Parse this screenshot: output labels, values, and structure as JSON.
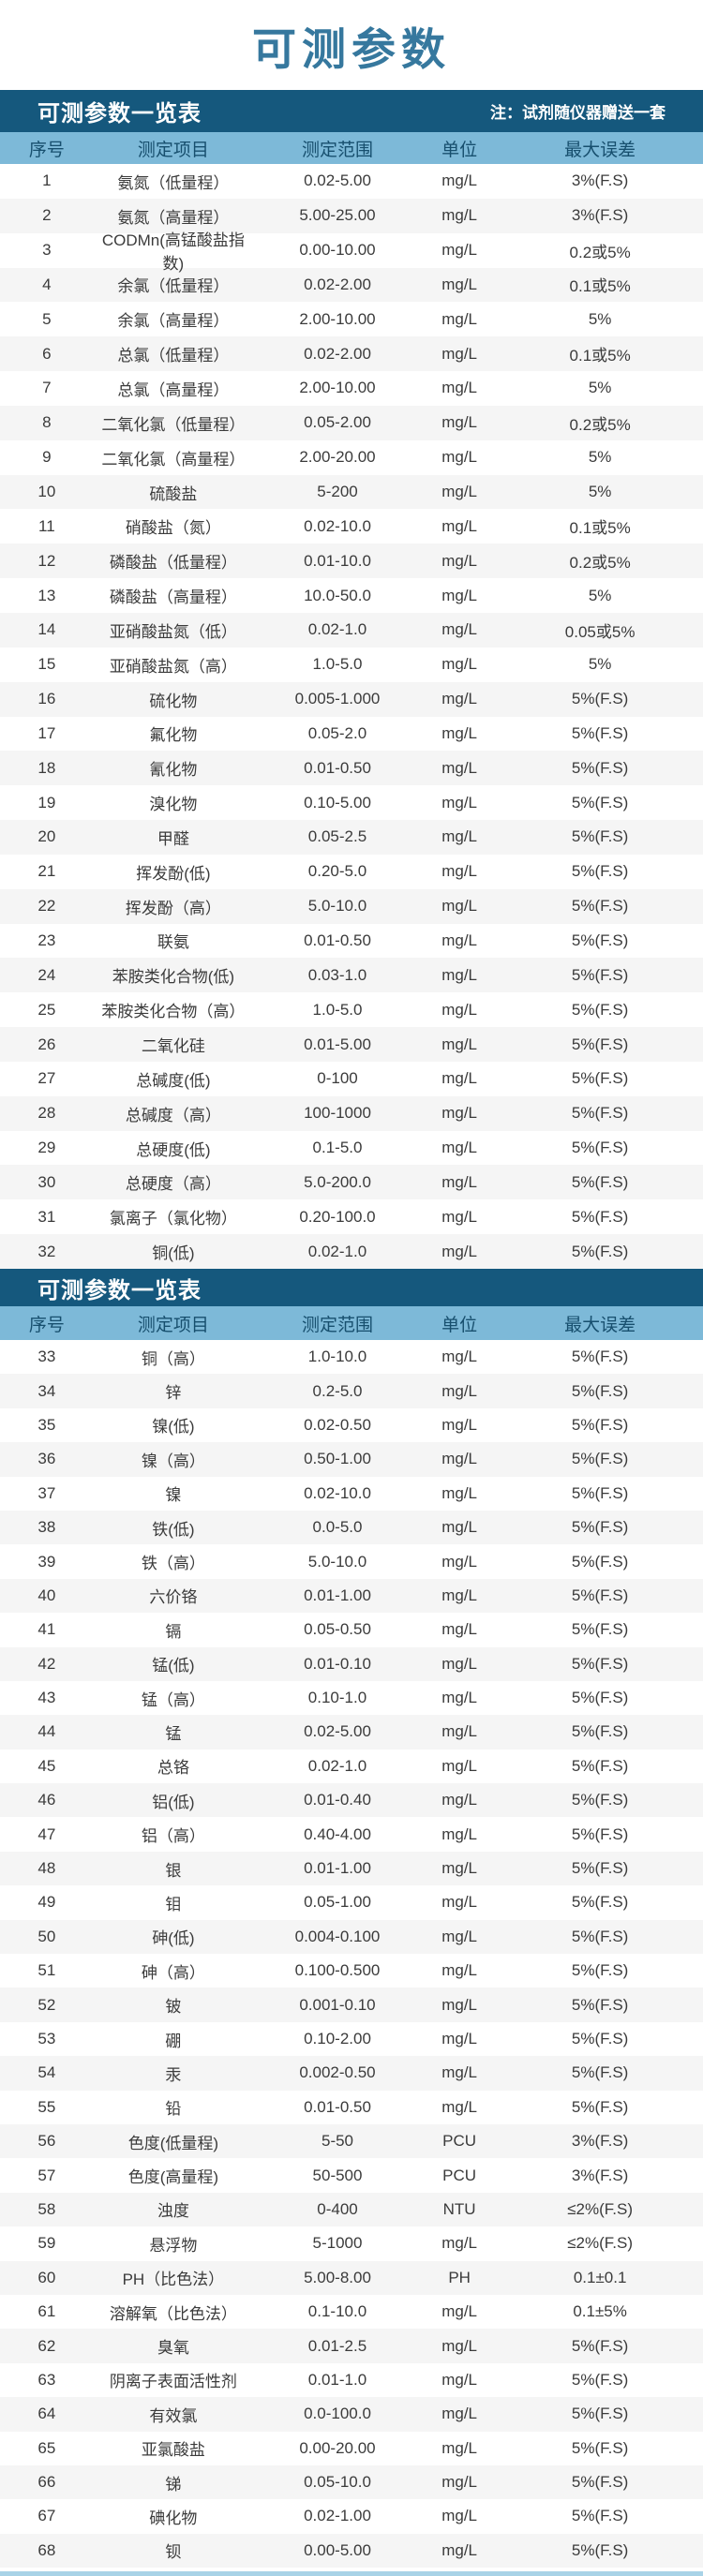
{
  "page_title": "可测参数",
  "colors": {
    "title_text": "#36789e",
    "section_bar_bg": "#15587d",
    "section_bar_text": "#ffffff",
    "column_header_bg": "#7db9d8",
    "column_header_text": "#174f6e",
    "row_alt_bg": "#f5f5f5",
    "row_text": "#3b3b3b",
    "bottom_strip": "#a9d3e7"
  },
  "columns": [
    "序号",
    "测定项目",
    "测定范围",
    "单位",
    "最大误差"
  ],
  "sections": [
    {
      "title": "可测参数一览表",
      "note": "注：试剂随仪器赠送一套",
      "rows": [
        [
          "1",
          "氨氮（低量程）",
          "0.02-5.00",
          "mg/L",
          "3%(F.S)"
        ],
        [
          "2",
          "氨氮（高量程）",
          "5.00-25.00",
          "mg/L",
          "3%(F.S)"
        ],
        [
          "3",
          "CODMn(高锰酸盐指数)",
          "0.00-10.00",
          "mg/L",
          "0.2或5%"
        ],
        [
          "4",
          "余氯（低量程）",
          "0.02-2.00",
          "mg/L",
          "0.1或5%"
        ],
        [
          "5",
          "余氯（高量程）",
          "2.00-10.00",
          "mg/L",
          "5%"
        ],
        [
          "6",
          "总氯（低量程）",
          "0.02-2.00",
          "mg/L",
          "0.1或5%"
        ],
        [
          "7",
          "总氯（高量程）",
          "2.00-10.00",
          "mg/L",
          "5%"
        ],
        [
          "8",
          "二氧化氯（低量程）",
          "0.05-2.00",
          "mg/L",
          "0.2或5%"
        ],
        [
          "9",
          "二氧化氯（高量程）",
          "2.00-20.00",
          "mg/L",
          "5%"
        ],
        [
          "10",
          "硫酸盐",
          "5-200",
          "mg/L",
          "5%"
        ],
        [
          "11",
          "硝酸盐（氮）",
          "0.02-10.0",
          "mg/L",
          "0.1或5%"
        ],
        [
          "12",
          "磷酸盐（低量程）",
          "0.01-10.0",
          "mg/L",
          "0.2或5%"
        ],
        [
          "13",
          "磷酸盐（高量程）",
          "10.0-50.0",
          "mg/L",
          "5%"
        ],
        [
          "14",
          "亚硝酸盐氮（低）",
          "0.02-1.0",
          "mg/L",
          "0.05或5%"
        ],
        [
          "15",
          "亚硝酸盐氮（高）",
          "1.0-5.0",
          "mg/L",
          "5%"
        ],
        [
          "16",
          "硫化物",
          "0.005-1.000",
          "mg/L",
          "5%(F.S)"
        ],
        [
          "17",
          "氟化物",
          "0.05-2.0",
          "mg/L",
          "5%(F.S)"
        ],
        [
          "18",
          "氰化物",
          "0.01-0.50",
          "mg/L",
          "5%(F.S)"
        ],
        [
          "19",
          "溴化物",
          "0.10-5.00",
          "mg/L",
          "5%(F.S)"
        ],
        [
          "20",
          "甲醛",
          "0.05-2.5",
          "mg/L",
          "5%(F.S)"
        ],
        [
          "21",
          "挥发酚(低)",
          "0.20-5.0",
          "mg/L",
          "5%(F.S)"
        ],
        [
          "22",
          "挥发酚（高）",
          "5.0-10.0",
          "mg/L",
          "5%(F.S)"
        ],
        [
          "23",
          "联氨",
          "0.01-0.50",
          "mg/L",
          "5%(F.S)"
        ],
        [
          "24",
          "苯胺类化合物(低)",
          "0.03-1.0",
          "mg/L",
          "5%(F.S)"
        ],
        [
          "25",
          "苯胺类化合物（高）",
          "1.0-5.0",
          "mg/L",
          "5%(F.S)"
        ],
        [
          "26",
          "二氧化硅",
          "0.01-5.00",
          "mg/L",
          "5%(F.S)"
        ],
        [
          "27",
          "总碱度(低)",
          "0-100",
          "mg/L",
          "5%(F.S)"
        ],
        [
          "28",
          "总碱度（高）",
          "100-1000",
          "mg/L",
          "5%(F.S)"
        ],
        [
          "29",
          "总硬度(低)",
          "0.1-5.0",
          "mg/L",
          "5%(F.S)"
        ],
        [
          "30",
          "总硬度（高）",
          "5.0-200.0",
          "mg/L",
          "5%(F.S)"
        ],
        [
          "31",
          "氯离子（氯化物）",
          "0.20-100.0",
          "mg/L",
          "5%(F.S)"
        ],
        [
          "32",
          "铜(低)",
          "0.02-1.0",
          "mg/L",
          "5%(F.S)"
        ]
      ]
    },
    {
      "title": "可测参数一览表",
      "note": "",
      "rows": [
        [
          "33",
          "铜（高）",
          "1.0-10.0",
          "mg/L",
          "5%(F.S)"
        ],
        [
          "34",
          "锌",
          "0.2-5.0",
          "mg/L",
          "5%(F.S)"
        ],
        [
          "35",
          "镍(低)",
          "0.02-0.50",
          "mg/L",
          "5%(F.S)"
        ],
        [
          "36",
          "镍（高）",
          "0.50-1.00",
          "mg/L",
          "5%(F.S)"
        ],
        [
          "37",
          "镍",
          "0.02-10.0",
          "mg/L",
          "5%(F.S)"
        ],
        [
          "38",
          "铁(低)",
          "0.0-5.0",
          "mg/L",
          "5%(F.S)"
        ],
        [
          "39",
          "铁（高）",
          "5.0-10.0",
          "mg/L",
          "5%(F.S)"
        ],
        [
          "40",
          "六价铬",
          "0.01-1.00",
          "mg/L",
          "5%(F.S)"
        ],
        [
          "41",
          "镉",
          "0.05-0.50",
          "mg/L",
          "5%(F.S)"
        ],
        [
          "42",
          "锰(低)",
          "0.01-0.10",
          "mg/L",
          "5%(F.S)"
        ],
        [
          "43",
          "锰（高）",
          "0.10-1.0",
          "mg/L",
          "5%(F.S)"
        ],
        [
          "44",
          "锰",
          "0.02-5.00",
          "mg/L",
          "5%(F.S)"
        ],
        [
          "45",
          "总铬",
          "0.02-1.0",
          "mg/L",
          "5%(F.S)"
        ],
        [
          "46",
          "铝(低)",
          "0.01-0.40",
          "mg/L",
          "5%(F.S)"
        ],
        [
          "47",
          "铝（高）",
          "0.40-4.00",
          "mg/L",
          "5%(F.S)"
        ],
        [
          "48",
          "银",
          "0.01-1.00",
          "mg/L",
          "5%(F.S)"
        ],
        [
          "49",
          "钼",
          "0.05-1.00",
          "mg/L",
          "5%(F.S)"
        ],
        [
          "50",
          "砷(低)",
          "0.004-0.100",
          "mg/L",
          "5%(F.S)"
        ],
        [
          "51",
          "砷（高）",
          "0.100-0.500",
          "mg/L",
          "5%(F.S)"
        ],
        [
          "52",
          "铍",
          "0.001-0.10",
          "mg/L",
          "5%(F.S)"
        ],
        [
          "53",
          "硼",
          "0.10-2.00",
          "mg/L",
          "5%(F.S)"
        ],
        [
          "54",
          "汞",
          "0.002-0.50",
          "mg/L",
          "5%(F.S)"
        ],
        [
          "55",
          "铅",
          "0.01-0.50",
          "mg/L",
          "5%(F.S)"
        ],
        [
          "56",
          "色度(低量程)",
          "5-50",
          "PCU",
          "3%(F.S)"
        ],
        [
          "57",
          "色度(高量程)",
          "50-500",
          "PCU",
          "3%(F.S)"
        ],
        [
          "58",
          "浊度",
          "0-400",
          "NTU",
          "≤2%(F.S)"
        ],
        [
          "59",
          "悬浮物",
          "5-1000",
          "mg/L",
          "≤2%(F.S)"
        ],
        [
          "60",
          "PH（比色法）",
          "5.00-8.00",
          "PH",
          "0.1±0.1"
        ],
        [
          "61",
          "溶解氧（比色法）",
          "0.1-10.0",
          "mg/L",
          "0.1±5%"
        ],
        [
          "62",
          "臭氧",
          "0.01-2.5",
          "mg/L",
          "5%(F.S)"
        ],
        [
          "63",
          "阴离子表面活性剂",
          "0.01-1.0",
          "mg/L",
          "5%(F.S)"
        ],
        [
          "64",
          "有效氯",
          "0.0-100.0",
          "mg/L",
          "5%(F.S)"
        ],
        [
          "65",
          "亚氯酸盐",
          "0.00-20.00",
          "mg/L",
          "5%(F.S)"
        ],
        [
          "66",
          "锑",
          "0.05-10.0",
          "mg/L",
          "5%(F.S)"
        ],
        [
          "67",
          "碘化物",
          "0.02-1.00",
          "mg/L",
          "5%(F.S)"
        ],
        [
          "68",
          "钡",
          "0.00-5.00",
          "mg/L",
          "5%(F.S)"
        ]
      ]
    }
  ]
}
